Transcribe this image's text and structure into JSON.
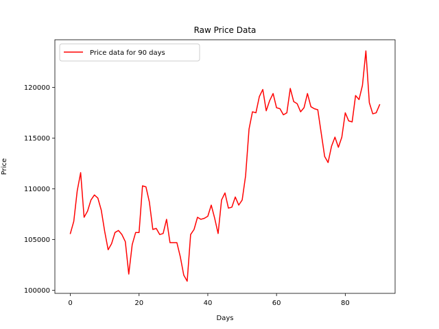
{
  "chart_data": {
    "type": "line",
    "title": "Raw Price Data",
    "xlabel": "Days",
    "ylabel": "Price",
    "xlim": [
      -4.5,
      94.5
    ],
    "ylim": [
      99700,
      124700
    ],
    "xticks": [
      0,
      20,
      40,
      60,
      80
    ],
    "yticks": [
      100000,
      105000,
      110000,
      115000,
      120000
    ],
    "ytick_labels": [
      "100000",
      "105000",
      "110000",
      "115000",
      "120000"
    ],
    "grid": false,
    "legend_position": "upper-left",
    "series": [
      {
        "name": "Price data for 90 days",
        "color": "#ff0000",
        "x": [
          0,
          1,
          2,
          3,
          4,
          5,
          6,
          7,
          8,
          9,
          10,
          11,
          12,
          13,
          14,
          15,
          16,
          17,
          18,
          19,
          20,
          21,
          22,
          23,
          24,
          25,
          26,
          27,
          28,
          29,
          30,
          31,
          32,
          33,
          34,
          35,
          36,
          37,
          38,
          39,
          40,
          41,
          42,
          43,
          44,
          45,
          46,
          47,
          48,
          49,
          50,
          51,
          52,
          53,
          54,
          55,
          56,
          57,
          58,
          59,
          60,
          61,
          62,
          63,
          64,
          65,
          66,
          67,
          68,
          69,
          70,
          71,
          72,
          73,
          74,
          75,
          76,
          77,
          78,
          79,
          80,
          81,
          82,
          83,
          84,
          85,
          86,
          87,
          88,
          89,
          90
        ],
        "values": [
          105600,
          106800,
          109800,
          111600,
          107200,
          107800,
          108900,
          109400,
          109100,
          107900,
          105800,
          104000,
          104600,
          105700,
          105900,
          105500,
          104800,
          101600,
          104500,
          105700,
          105700,
          110300,
          110200,
          108700,
          106000,
          106100,
          105500,
          105600,
          107000,
          104700,
          104700,
          104700,
          103300,
          101500,
          100900,
          105500,
          106000,
          107200,
          107000,
          107100,
          107300,
          108400,
          107100,
          105600,
          108900,
          109600,
          108100,
          108200,
          109200,
          108400,
          108900,
          111300,
          115900,
          117600,
          117500,
          119100,
          119800,
          117700,
          118700,
          119400,
          118000,
          117900,
          117300,
          117500,
          119900,
          118600,
          118400,
          117600,
          118000,
          119400,
          118100,
          117900,
          117800,
          115500,
          113200,
          112600,
          114200,
          115100,
          114100,
          115100,
          117500,
          116700,
          116600,
          119200,
          118800,
          120200,
          123600,
          118500,
          117400,
          117500,
          118300
        ]
      }
    ]
  }
}
